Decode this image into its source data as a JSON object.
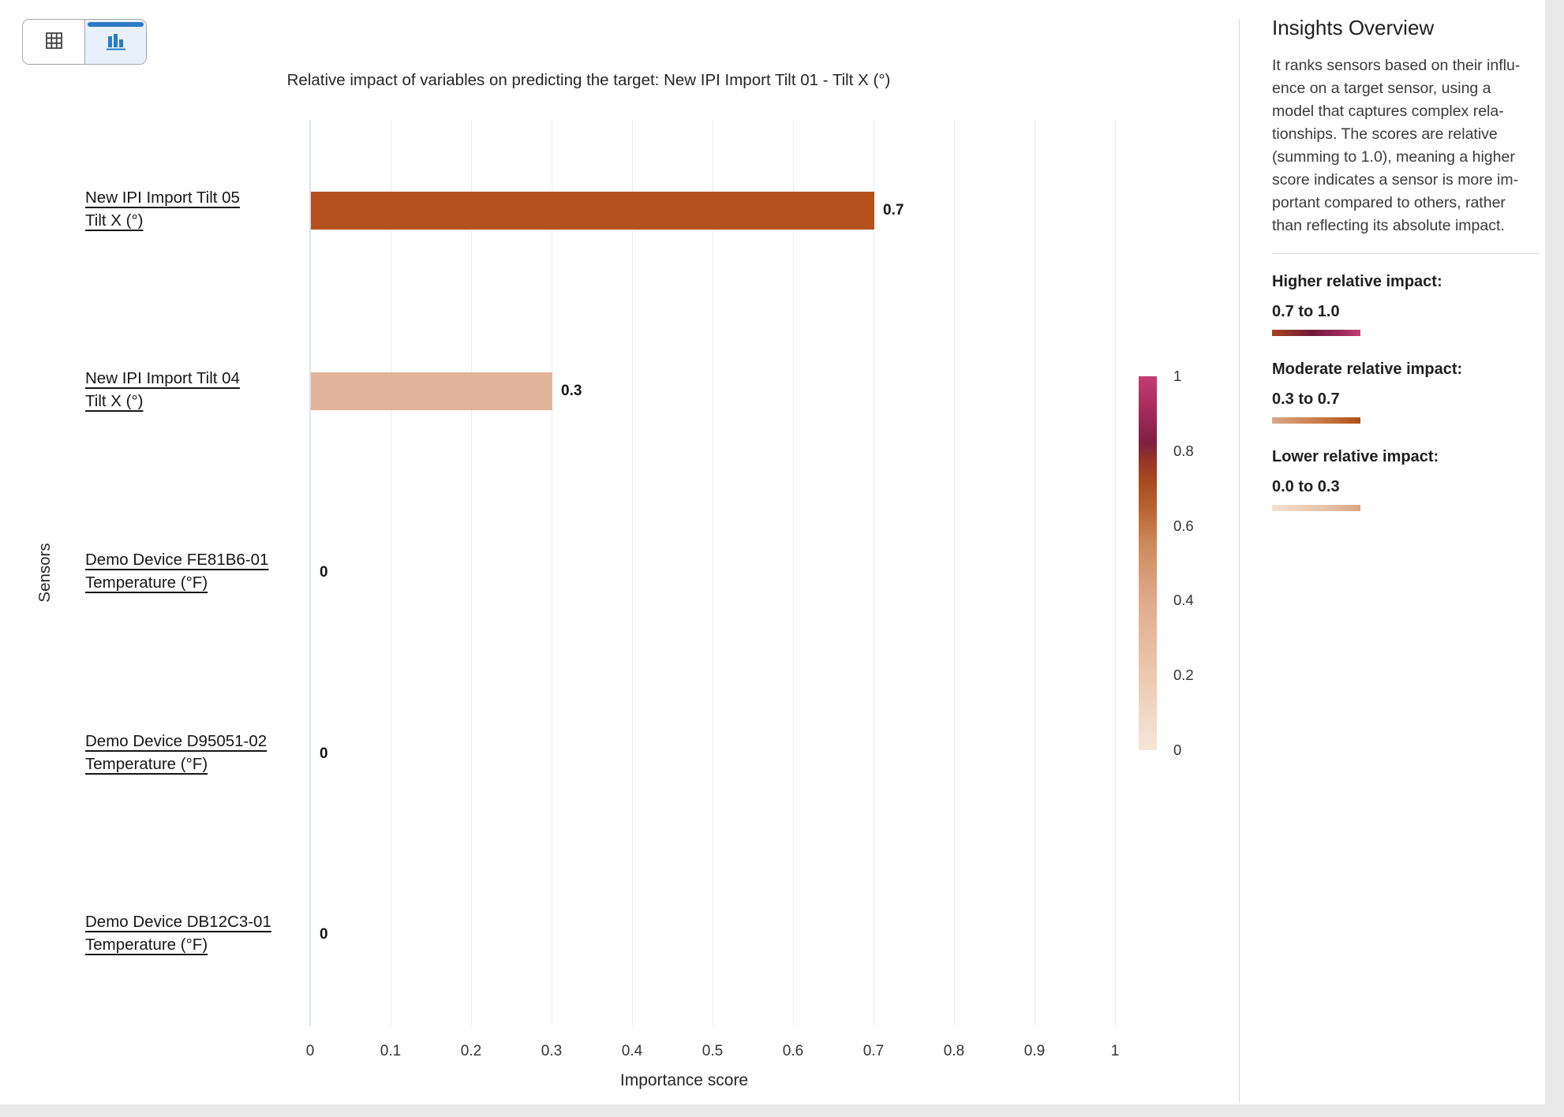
{
  "toolbar": {
    "view_toggle": {
      "table_button": {
        "icon": "table-grid-icon",
        "selected": false
      },
      "chart_button": {
        "icon": "bar-chart-icon",
        "selected": true
      }
    }
  },
  "chart": {
    "title": "Relative impact of variables on predicting the target: New IPI Import Tilt 01 - Tilt X (°)",
    "x_axis_label": "Importance score",
    "y_axis_label": "Sensors",
    "rows": [
      {
        "label_line1": "New IPI Import Tilt 05",
        "label_line2": "Tilt X (°)",
        "value": 0.7,
        "value_label": "0.7",
        "color": "#b4511e"
      },
      {
        "label_line1": "New IPI Import Tilt 04",
        "label_line2": "Tilt X (°)",
        "value": 0.3,
        "value_label": "0.3",
        "color": "#dfb49b"
      },
      {
        "label_line1": "Demo Device FE81B6-01",
        "label_line2": "Temperature (°F)",
        "value": 0,
        "value_label": "0",
        "color": null
      },
      {
        "label_line1": "Demo Device D95051-02",
        "label_line2": "Temperature (°F)",
        "value": 0,
        "value_label": "0",
        "color": null
      },
      {
        "label_line1": "Demo Device DB12C3-01",
        "label_line2": "Temperature (°F)",
        "value": 0,
        "value_label": "0",
        "color": null
      }
    ],
    "colorbar": {
      "ticks": [
        1,
        0.8,
        0.6,
        0.4,
        0.2,
        0
      ],
      "gradient_css": "linear-gradient(to top, #f6e7da 0%, #ecc9b0 20%, #dfab8c 40%, #cd8a5c 55%, #b86230 65%, #a64a1f 72%, #93332a 78%, #7f1f41 82%, #a02a58 90%, #c33d72 100%)"
    }
  },
  "chart_data": {
    "type": "bar",
    "orientation": "horizontal",
    "title": "Relative impact of variables on predicting the target: New IPI Import Tilt 01 - Tilt X (°)",
    "xlabel": "Importance score",
    "ylabel": "Sensors",
    "xlim": [
      0,
      1
    ],
    "x_ticks": [
      0,
      0.1,
      0.2,
      0.3,
      0.4,
      0.5,
      0.6,
      0.7,
      0.8,
      0.9,
      1
    ],
    "categories": [
      "New IPI Import Tilt 05 - Tilt X (°)",
      "New IPI Import Tilt 04 - Tilt X (°)",
      "Demo Device FE81B6-01 - Temperature (°F)",
      "Demo Device D95051-02 - Temperature (°F)",
      "Demo Device DB12C3-01 - Temperature (°F)"
    ],
    "values": [
      0.7,
      0.3,
      0,
      0,
      0
    ],
    "grid": true,
    "legend_position": "right-panel",
    "colorbar_ticks": [
      1,
      0.8,
      0.6,
      0.4,
      0.2,
      0
    ]
  },
  "sidebar": {
    "title": "Insights Overview",
    "description": "It ranks sensors based on their influ-\nence on a target sensor, using a\nmodel that captures complex rela-\ntionships. The scores are relative\n(summing to 1.0), meaning a higher\nscore indicates a sensor is more im-\nportant compared to others, rather\nthan reflecting its absolute impact.",
    "legend": [
      {
        "heading": "Higher relative impact:",
        "range": "0.7 to 1.0",
        "gradient_css": "linear-gradient(90deg, #a8431d 0%, #6f1b3a 45%, #9c2a5b 78%, #c13d6f 100%)"
      },
      {
        "heading": "Moderate relative impact:",
        "range": "0.3 to 0.7",
        "gradient_css": "linear-gradient(90deg, #d9a685 0%, #c77b45 55%, #b04e1c 100%)"
      },
      {
        "heading": "Lower relative impact:",
        "range": "0.0 to 0.3",
        "gradient_css": "linear-gradient(90deg, #f3e0d2 0%, #e7c5ab 55%, #d9a685 100%)"
      }
    ]
  },
  "colors": {
    "accent_blue": "#2b7ac6",
    "toggle_selected_bg": "#e8f1fb",
    "icon_gray": "#3f3f3f",
    "gridline": "#eaecef",
    "zero_line": "#d9e0f0",
    "high_bar": "#b4511e",
    "low_bar": "#dfb49b",
    "divider": "#d9d9d9"
  }
}
